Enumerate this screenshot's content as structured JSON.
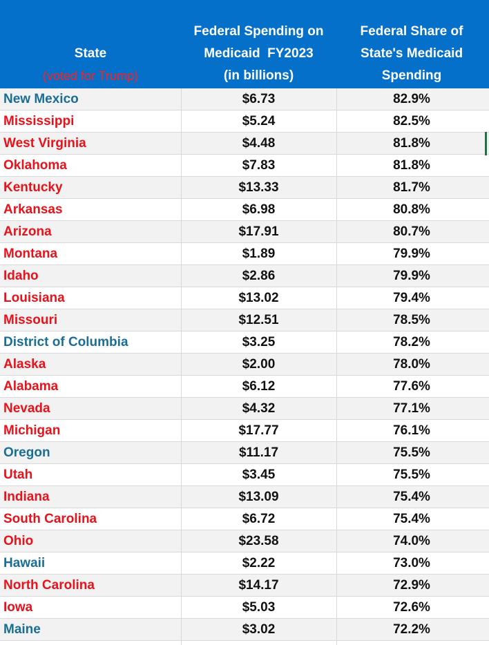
{
  "table": {
    "headers": {
      "state": "State",
      "state_sub": "(voted for Trump)",
      "spending_line1": "Federal Spending on",
      "spending_line2": "Medicaid  FY2023",
      "spending_line3": "(in billions)",
      "share_line1": "Federal Share of",
      "share_line2": "State's Medicaid",
      "share_line3": "Spending"
    },
    "legend_color_trump": "#e8121a",
    "legend_color_other": "#1a6e96",
    "header_background": "#0570c9",
    "rows": [
      {
        "state": "New Mexico",
        "spending": "$6.73",
        "share": "82.9%",
        "trump": false
      },
      {
        "state": "Mississippi",
        "spending": "$5.24",
        "share": "82.5%",
        "trump": true
      },
      {
        "state": "West Virginia",
        "spending": "$4.48",
        "share": "81.8%",
        "trump": true
      },
      {
        "state": "Oklahoma",
        "spending": "$7.83",
        "share": "81.8%",
        "trump": true
      },
      {
        "state": "Kentucky",
        "spending": "$13.33",
        "share": "81.7%",
        "trump": true
      },
      {
        "state": "Arkansas",
        "spending": "$6.98",
        "share": "80.8%",
        "trump": true
      },
      {
        "state": "Arizona",
        "spending": "$17.91",
        "share": "80.7%",
        "trump": true
      },
      {
        "state": "Montana",
        "spending": "$1.89",
        "share": "79.9%",
        "trump": true
      },
      {
        "state": "Idaho",
        "spending": "$2.86",
        "share": "79.9%",
        "trump": true
      },
      {
        "state": "Louisiana",
        "spending": "$13.02",
        "share": "79.4%",
        "trump": true
      },
      {
        "state": "Missouri",
        "spending": "$12.51",
        "share": "78.5%",
        "trump": true
      },
      {
        "state": "District of Columbia",
        "spending": "$3.25",
        "share": "78.2%",
        "trump": false
      },
      {
        "state": "Alaska",
        "spending": "$2.00",
        "share": "78.0%",
        "trump": true
      },
      {
        "state": "Alabama",
        "spending": "$6.12",
        "share": "77.6%",
        "trump": true
      },
      {
        "state": "Nevada",
        "spending": "$4.32",
        "share": "77.1%",
        "trump": true
      },
      {
        "state": "Michigan",
        "spending": "$17.77",
        "share": "76.1%",
        "trump": true
      },
      {
        "state": "Oregon",
        "spending": "$11.17",
        "share": "75.5%",
        "trump": false
      },
      {
        "state": "Utah",
        "spending": "$3.45",
        "share": "75.5%",
        "trump": true
      },
      {
        "state": "Indiana",
        "spending": "$13.09",
        "share": "75.4%",
        "trump": true
      },
      {
        "state": "South Carolina",
        "spending": "$6.72",
        "share": "75.4%",
        "trump": true
      },
      {
        "state": "Ohio",
        "spending": "$23.58",
        "share": "74.0%",
        "trump": true
      },
      {
        "state": "Hawaii",
        "spending": "$2.22",
        "share": "73.0%",
        "trump": false
      },
      {
        "state": "North Carolina",
        "spending": "$14.17",
        "share": "72.9%",
        "trump": true
      },
      {
        "state": "Iowa",
        "spending": "$5.03",
        "share": "72.6%",
        "trump": true
      },
      {
        "state": "Maine",
        "spending": "$3.02",
        "share": "72.2%",
        "trump": false
      }
    ]
  }
}
